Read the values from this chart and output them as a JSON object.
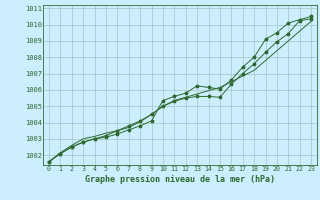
{
  "title": "Graphe pression niveau de la mer (hPa)",
  "bg_color": "#cceeff",
  "grid_color": "#aacccc",
  "line_color": "#2d6a2d",
  "xlim": [
    -0.5,
    23.5
  ],
  "ylim": [
    1001.4,
    1011.2
  ],
  "yticks": [
    1002,
    1003,
    1004,
    1005,
    1006,
    1007,
    1008,
    1009,
    1010,
    1011
  ],
  "xticks": [
    0,
    1,
    2,
    3,
    4,
    5,
    6,
    7,
    8,
    9,
    10,
    11,
    12,
    13,
    14,
    15,
    16,
    17,
    18,
    19,
    20,
    21,
    22,
    23
  ],
  "line1": [
    1001.6,
    1002.1,
    1002.5,
    1002.8,
    1003.0,
    1003.1,
    1003.3,
    1003.55,
    1003.8,
    1004.1,
    1005.35,
    1005.6,
    1005.8,
    1006.25,
    1006.15,
    1006.05,
    1006.6,
    1007.4,
    1008.0,
    1009.1,
    1009.5,
    1010.1,
    1010.3,
    1010.5
  ],
  "line2": [
    1001.6,
    1002.1,
    1002.5,
    1002.8,
    1003.0,
    1003.2,
    1003.5,
    1003.8,
    1004.1,
    1004.5,
    1005.0,
    1005.3,
    1005.5,
    1005.6,
    1005.6,
    1005.55,
    1006.35,
    1007.0,
    1007.6,
    1008.3,
    1008.95,
    1009.45,
    1010.25,
    1010.35
  ],
  "line3": [
    1001.6,
    1002.15,
    1002.6,
    1003.0,
    1003.15,
    1003.35,
    1003.5,
    1003.7,
    1004.05,
    1004.5,
    1005.0,
    1005.35,
    1005.55,
    1005.75,
    1005.95,
    1006.15,
    1006.5,
    1006.85,
    1007.2,
    1007.8,
    1008.4,
    1009.0,
    1009.6,
    1010.2
  ]
}
